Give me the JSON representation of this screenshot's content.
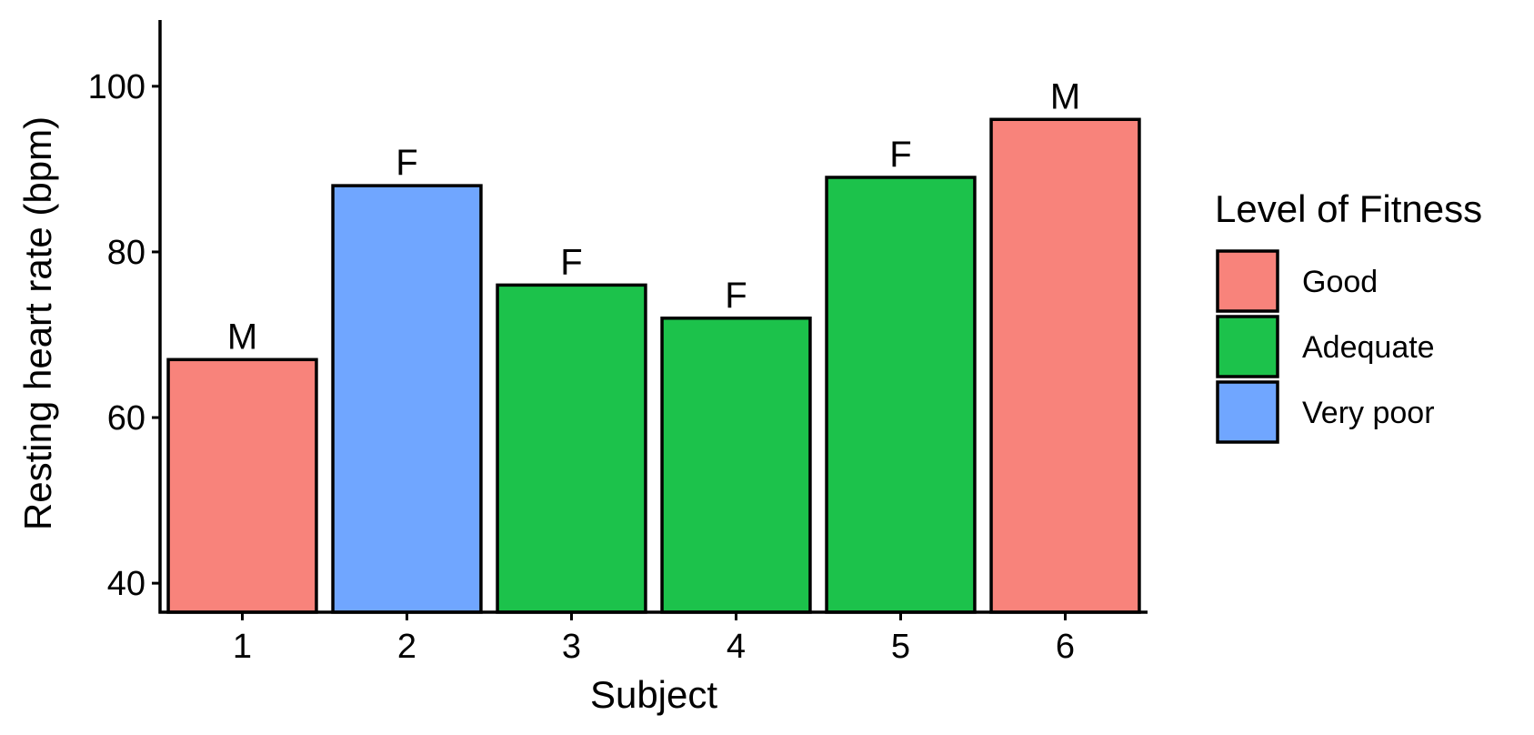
{
  "chart_data": {
    "type": "bar",
    "categories": [
      "1",
      "2",
      "3",
      "4",
      "5",
      "6"
    ],
    "values": [
      67,
      88,
      76,
      72,
      89,
      96
    ],
    "bar_labels": [
      "M",
      "F",
      "F",
      "F",
      "F",
      "M"
    ],
    "fitness": [
      "Good",
      "Very poor",
      "Adequate",
      "Adequate",
      "Adequate",
      "Good"
    ],
    "xlabel": "Subject",
    "ylabel": "Resting heart rate (bpm)",
    "ylim": [
      36.5,
      108
    ],
    "yticks": [
      40,
      60,
      80,
      100
    ],
    "grid": false,
    "legend": {
      "title": "Level of Fitness",
      "position": "right",
      "entries": [
        {
          "label": "Good",
          "color": "#F8837B"
        },
        {
          "label": "Adequate",
          "color": "#1CC24B"
        },
        {
          "label": "Very poor",
          "color": "#70A6FF"
        }
      ]
    }
  }
}
